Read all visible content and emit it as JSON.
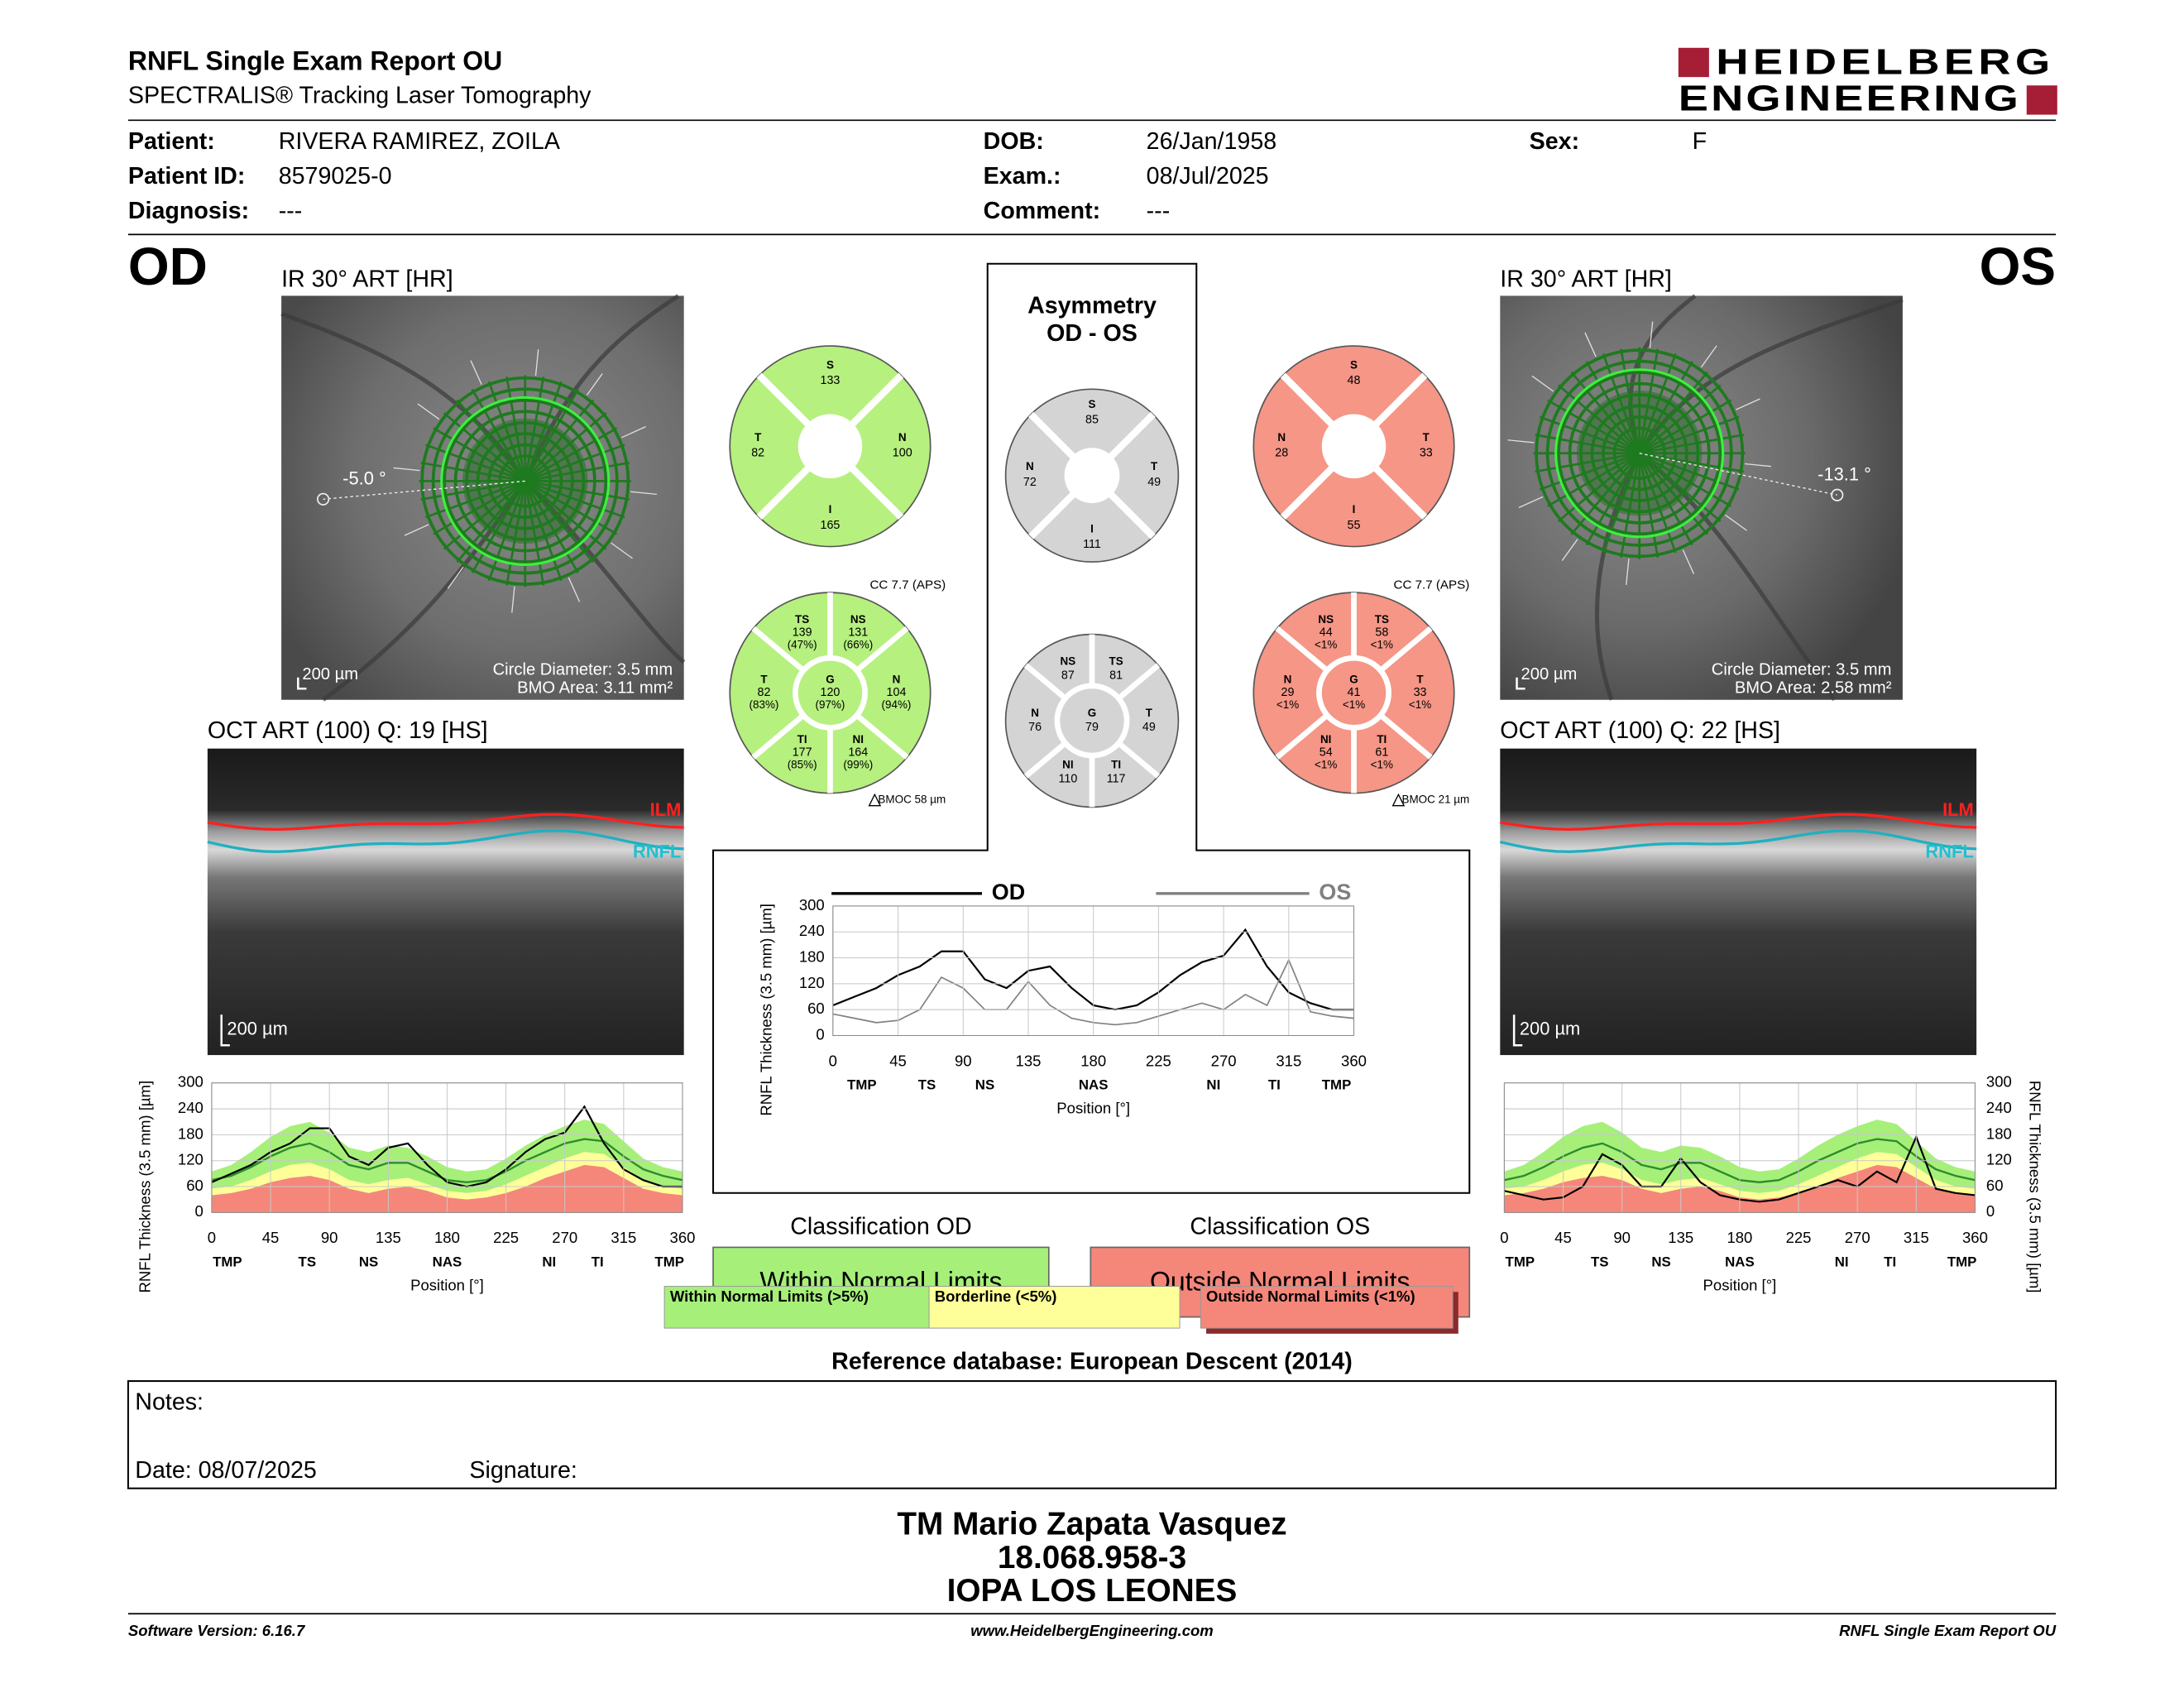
{
  "header": {
    "title": "RNFL Single Exam Report OU",
    "subtitle": "SPECTRALIS® Tracking Laser Tomography",
    "logo": [
      "HEIDELBERG",
      "ENGINEERING"
    ],
    "logo_color": "#a51e36"
  },
  "patient": [
    [
      {
        "label": "Patient:",
        "value": "RIVERA RAMIREZ, ZOILA"
      },
      {
        "label": "DOB:",
        "value": "26/Jan/1958"
      },
      {
        "label": "Sex:",
        "value": "F"
      }
    ],
    [
      {
        "label": "Patient ID:",
        "value": "8579025-0"
      },
      {
        "label": "Exam.:",
        "value": "08/Jul/2025"
      }
    ],
    [
      {
        "label": "Diagnosis:",
        "value": "---"
      },
      {
        "label": "Comment:",
        "value": "---"
      }
    ]
  ],
  "od": {
    "eye": "OD",
    "ir_title": "IR 30° ART [HR]",
    "angle": "-5.0 °",
    "ir_scale": "200 µm",
    "circle": "Circle Diameter: 3.5 mm",
    "bmo": "BMO Area: 3.11 mm²",
    "oct_title": "OCT ART (100) Q: 19 [HS]",
    "oct_scale": "200 µm",
    "layers": [
      "ILM",
      "RNFL"
    ],
    "color": "#b6f07f",
    "sectors4": [
      {
        "label": "S",
        "value": 133
      },
      {
        "label": "N",
        "value": 100
      },
      {
        "label": "I",
        "value": 165
      },
      {
        "label": "T",
        "value": 82
      }
    ],
    "sectors8": [
      {
        "label": "NS",
        "value": 131,
        "percent": "(66%)"
      },
      {
        "label": "N",
        "value": 104,
        "percent": "(94%)"
      },
      {
        "label": "NI",
        "value": 164,
        "percent": "(99%)"
      },
      {
        "label": "TI",
        "value": 177,
        "percent": "(85%)"
      },
      {
        "label": "T",
        "value": 82,
        "percent": "(83%)"
      },
      {
        "label": "TS",
        "value": 139,
        "percent": "(47%)"
      }
    ],
    "center": {
      "label": "G",
      "value": 120,
      "percent": "(97%)"
    },
    "cc": "CC 7.7 (APS)",
    "bmoc": "BMOC 58 µm",
    "classification_title": "Classification OD",
    "classification": "Within Normal Limits",
    "class_color": "#a6f07a",
    "profile": {
      "x": [
        0,
        15,
        30,
        45,
        60,
        75,
        90,
        105,
        120,
        135,
        150,
        165,
        180,
        195,
        210,
        225,
        240,
        255,
        270,
        285,
        300,
        315,
        330,
        345,
        360
      ],
      "values": [
        70,
        90,
        110,
        140,
        160,
        195,
        195,
        130,
        110,
        150,
        160,
        110,
        70,
        60,
        70,
        100,
        140,
        170,
        185,
        245,
        160,
        100,
        75,
        60,
        60
      ],
      "p1": [
        40,
        45,
        55,
        70,
        80,
        85,
        75,
        55,
        45,
        55,
        60,
        50,
        35,
        30,
        35,
        45,
        60,
        80,
        95,
        110,
        105,
        80,
        55,
        45,
        40
      ],
      "p5": [
        55,
        60,
        75,
        95,
        110,
        115,
        100,
        75,
        65,
        75,
        80,
        65,
        50,
        45,
        50,
        65,
        85,
        105,
        125,
        140,
        135,
        105,
        75,
        60,
        55
      ],
      "mean": [
        75,
        85,
        105,
        130,
        150,
        160,
        140,
        110,
        100,
        115,
        115,
        95,
        75,
        70,
        75,
        95,
        120,
        140,
        160,
        170,
        165,
        130,
        100,
        85,
        75
      ],
      "p99": [
        95,
        110,
        140,
        175,
        200,
        210,
        185,
        150,
        140,
        155,
        150,
        130,
        105,
        95,
        100,
        125,
        155,
        180,
        200,
        215,
        205,
        165,
        125,
        105,
        95
      ],
      "line_color": "#000000",
      "mean_color": "#2e8b2e",
      "xlim": [
        0,
        360
      ],
      "xticks": [
        0,
        45,
        90,
        135,
        180,
        225,
        270,
        315,
        360
      ],
      "regions": [
        {
          "value": 12,
          "label": "TMP"
        },
        {
          "value": 73,
          "label": "TS"
        },
        {
          "value": 120,
          "label": "NS"
        },
        {
          "value": 180,
          "label": "NAS"
        },
        {
          "value": 258,
          "label": "NI"
        },
        {
          "value": 295,
          "label": "TI"
        },
        {
          "value": 350,
          "label": "TMP"
        }
      ],
      "ylim": [
        0,
        300
      ],
      "yticks": [
        0,
        60,
        120,
        180,
        240,
        300
      ],
      "ylabel": "RNFL Thickness (3.5 mm) [µm]",
      "xlabel": "Position [°]",
      "grid": true
    }
  },
  "os": {
    "eye": "OS",
    "ir_title": "IR 30° ART [HR]",
    "angle": "-13.1 °",
    "ir_scale": "200 µm",
    "circle": "Circle Diameter: 3.5 mm",
    "bmo": "BMO Area: 2.58 mm²",
    "oct_title": "OCT ART (100) Q: 22 [HS]",
    "oct_scale": "200 µm",
    "layers": [
      "ILM",
      "RNFL"
    ],
    "color": "#f59686",
    "sectors4": [
      {
        "label": "S",
        "value": 48
      },
      {
        "label": "T",
        "value": 33
      },
      {
        "label": "I",
        "value": 55
      },
      {
        "label": "N",
        "value": 28
      }
    ],
    "sectors8": [
      {
        "label": "TS",
        "value": 58,
        "percent": "<1%"
      },
      {
        "label": "T",
        "value": 33,
        "percent": "<1%"
      },
      {
        "label": "TI",
        "value": 61,
        "percent": "<1%"
      },
      {
        "label": "NI",
        "value": 54,
        "percent": "<1%"
      },
      {
        "label": "N",
        "value": 29,
        "percent": "<1%"
      },
      {
        "label": "NS",
        "value": 44,
        "percent": "<1%"
      }
    ],
    "center": {
      "label": "G",
      "value": 41,
      "percent": "<1%"
    },
    "cc": "CC 7.7 (APS)",
    "bmoc": "BMOC 21 µm",
    "classification_title": "Classification OS",
    "classification": "Outside Normal Limits",
    "class_color": "#f4877a",
    "profile": {
      "x": [
        0,
        15,
        30,
        45,
        60,
        75,
        90,
        105,
        120,
        135,
        150,
        165,
        180,
        195,
        210,
        225,
        240,
        255,
        270,
        285,
        300,
        315,
        330,
        345,
        360
      ],
      "values": [
        50,
        40,
        30,
        35,
        60,
        135,
        110,
        60,
        60,
        125,
        70,
        40,
        30,
        25,
        30,
        45,
        60,
        75,
        60,
        95,
        70,
        175,
        55,
        45,
        40
      ],
      "p1": [
        40,
        45,
        55,
        70,
        80,
        85,
        75,
        55,
        45,
        55,
        60,
        50,
        35,
        30,
        35,
        45,
        60,
        80,
        95,
        110,
        105,
        80,
        55,
        45,
        40
      ],
      "p5": [
        55,
        60,
        75,
        95,
        110,
        115,
        100,
        75,
        65,
        75,
        80,
        65,
        50,
        45,
        50,
        65,
        85,
        105,
        125,
        140,
        135,
        105,
        75,
        60,
        55
      ],
      "mean": [
        75,
        85,
        105,
        130,
        150,
        160,
        140,
        110,
        100,
        115,
        115,
        95,
        75,
        70,
        75,
        95,
        120,
        140,
        160,
        170,
        165,
        130,
        100,
        85,
        75
      ],
      "p99": [
        95,
        110,
        140,
        175,
        200,
        210,
        185,
        150,
        140,
        155,
        150,
        130,
        105,
        95,
        100,
        125,
        155,
        180,
        200,
        215,
        205,
        165,
        125,
        105,
        95
      ],
      "line_color": "#000000",
      "mean_color": "#2e8b2e",
      "xlim": [
        0,
        360
      ],
      "xticks": [
        0,
        45,
        90,
        135,
        180,
        225,
        270,
        315,
        360
      ],
      "regions": [
        {
          "value": 12,
          "label": "TMP"
        },
        {
          "value": 73,
          "label": "TS"
        },
        {
          "value": 120,
          "label": "NS"
        },
        {
          "value": 180,
          "label": "NAS"
        },
        {
          "value": 258,
          "label": "NI"
        },
        {
          "value": 295,
          "label": "TI"
        },
        {
          "value": 350,
          "label": "TMP"
        }
      ],
      "ylim": [
        0,
        300
      ],
      "yticks": [
        0,
        60,
        120,
        180,
        240,
        300
      ],
      "ylabel": "RNFL Thickness (3.5 mm) [µm]",
      "xlabel": "Position [°]",
      "grid": true
    }
  },
  "asymmetry": {
    "title": [
      "Asymmetry",
      "OD - OS"
    ],
    "color": "#d4d4d4",
    "sectors4": [
      {
        "label": "S",
        "value": 85
      },
      {
        "label": "T",
        "value": 49
      },
      {
        "label": "I",
        "value": 111
      },
      {
        "label": "N",
        "value": 72
      }
    ],
    "sectors8": [
      {
        "label": "TS",
        "value": 81
      },
      {
        "label": "T",
        "value": 49
      },
      {
        "label": "TI",
        "value": 117
      },
      {
        "label": "NI",
        "value": 110
      },
      {
        "label": "N",
        "value": 76
      },
      {
        "label": "NS",
        "value": 87
      }
    ],
    "center": {
      "label": "G",
      "value": 79
    },
    "chart": {
      "od_color": "#000000",
      "os_color": "#808080",
      "xlim": [
        0,
        360
      ],
      "xticks": [
        0,
        45,
        90,
        135,
        180,
        225,
        270,
        315,
        360
      ],
      "regions": [
        {
          "value": 20,
          "label": "TMP"
        },
        {
          "value": 65,
          "label": "TS"
        },
        {
          "value": 105,
          "label": "NS"
        },
        {
          "value": 180,
          "label": "NAS"
        },
        {
          "value": 263,
          "label": "NI"
        },
        {
          "value": 305,
          "label": "TI"
        },
        {
          "value": 348,
          "label": "TMP"
        }
      ],
      "ylim": [
        0,
        300
      ],
      "yticks": [
        0,
        60,
        120,
        180,
        240,
        300
      ],
      "ylabel": "RNFL Thickness (3.5 mm) [µm]",
      "xlabel": "Position [°]",
      "grid": true
    }
  },
  "legend": [
    {
      "label": "Within Normal Limits (>5%)",
      "color": "#a6f07a"
    },
    {
      "label": "Borderline (<5%)",
      "color": "#ffff99"
    },
    {
      "label": "Outside Normal Limits (<1%)",
      "color": "#f4877a"
    }
  ],
  "reference": "Reference database: European Descent (2014)",
  "notes": {
    "label": "Notes:",
    "date": "Date: 08/07/2025",
    "signature": "Signature:"
  },
  "signer": [
    "TM Mario Zapata Vasquez",
    "18.068.958-3",
    "IOPA LOS LEONES"
  ],
  "footer": {
    "left": "Software Version: 6.16.7",
    "center": "www.HeidelbergEngineering.com",
    "right": "RNFL Single Exam Report OU"
  }
}
